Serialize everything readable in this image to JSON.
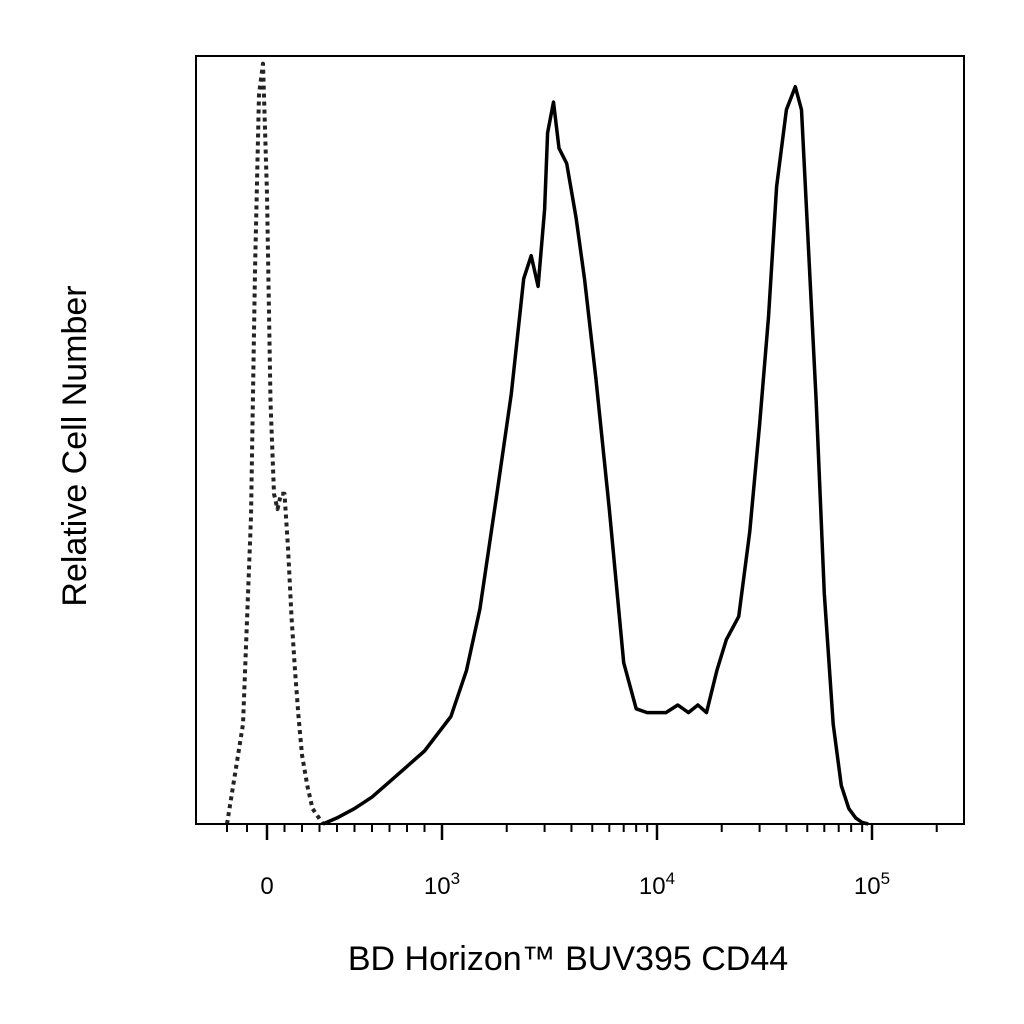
{
  "chart_data": {
    "type": "line",
    "title": "",
    "xlabel": "BD Horizon™ BUV395 CD44",
    "ylabel": "Relative Cell Number",
    "x_scale": "biexponential",
    "xlim": [
      -300,
      200000
    ],
    "ylim": [
      0,
      1.0
    ],
    "grid": false,
    "legend": "none",
    "x_tick_labels": [
      {
        "base": "0",
        "exp": "",
        "value": 0
      },
      {
        "base": "10",
        "exp": "3",
        "value": 1000
      },
      {
        "base": "10",
        "exp": "4",
        "value": 10000
      },
      {
        "base": "10",
        "exp": "5",
        "value": 100000
      }
    ],
    "major_ticks": [
      0,
      1000,
      10000,
      100000
    ],
    "minor_ticks": [
      -200,
      -100,
      100,
      200,
      300,
      400,
      500,
      600,
      700,
      800,
      900,
      2000,
      3000,
      4000,
      5000,
      6000,
      7000,
      8000,
      9000,
      20000,
      30000,
      40000,
      50000,
      60000,
      70000,
      80000,
      90000,
      200000
    ],
    "series": [
      {
        "style": "dotted",
        "color": "#222222",
        "x": [
          -200,
          -120,
          -80,
          -60,
          -40,
          -20,
          0,
          20,
          40,
          60,
          80,
          100,
          120,
          140,
          160,
          180,
          200,
          230,
          260,
          290,
          320
        ],
        "y": [
          0.0,
          0.13,
          0.4,
          0.72,
          0.95,
          0.99,
          0.82,
          0.55,
          0.43,
          0.41,
          0.43,
          0.43,
          0.36,
          0.27,
          0.2,
          0.14,
          0.09,
          0.05,
          0.02,
          0.01,
          0.0
        ]
      },
      {
        "style": "solid",
        "color": "#000000",
        "x": [
          320,
          400,
          500,
          600,
          700,
          800,
          900,
          1100,
          1300,
          1500,
          1800,
          2100,
          2400,
          2600,
          2800,
          3000,
          3100,
          3300,
          3500,
          3800,
          4200,
          4600,
          5200,
          6000,
          7000,
          8000,
          9000,
          11000,
          12500,
          14000,
          15500,
          17000,
          19000,
          21000,
          24000,
          27000,
          30000,
          33000,
          36000,
          40000,
          44000,
          47000,
          50000,
          55000,
          60000,
          66000,
          72000,
          78000,
          84000,
          90000,
          96000
        ],
        "y": [
          0.0,
          0.008,
          0.02,
          0.035,
          0.055,
          0.075,
          0.095,
          0.14,
          0.2,
          0.28,
          0.43,
          0.56,
          0.71,
          0.74,
          0.7,
          0.8,
          0.9,
          0.94,
          0.88,
          0.86,
          0.79,
          0.71,
          0.58,
          0.41,
          0.21,
          0.15,
          0.145,
          0.145,
          0.155,
          0.145,
          0.155,
          0.145,
          0.2,
          0.24,
          0.27,
          0.38,
          0.52,
          0.66,
          0.83,
          0.93,
          0.96,
          0.93,
          0.78,
          0.55,
          0.3,
          0.13,
          0.05,
          0.02,
          0.008,
          0.002,
          0.0
        ]
      },
      {
        "style": "dotted",
        "color": "#888888",
        "x": [
          320,
          100000,
          200000
        ],
        "y": [
          0.0,
          0.0,
          0.0
        ]
      }
    ]
  }
}
